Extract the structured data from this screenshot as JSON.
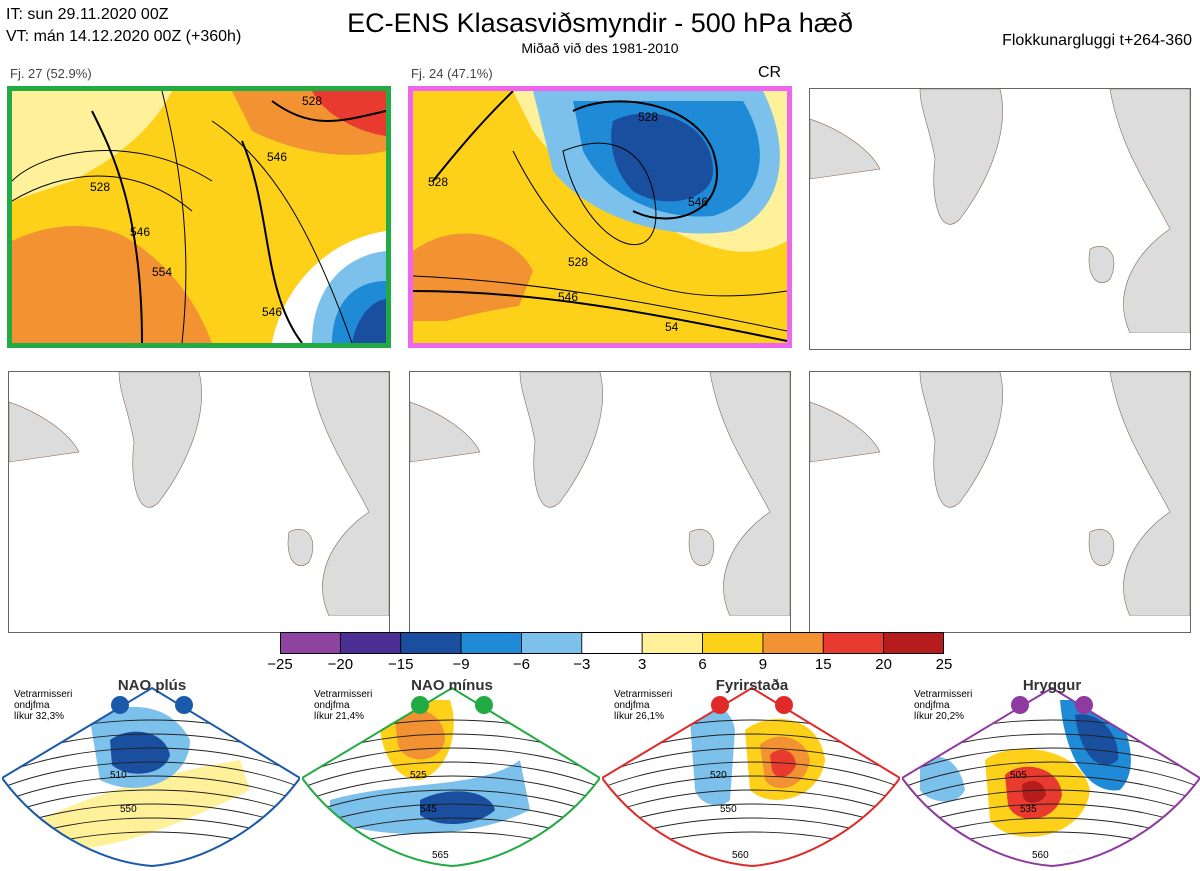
{
  "header": {
    "it_line": "IT: sun 29.11.2020 00Z",
    "vt_line": "VT: mán 14.12.2020 00Z  (+360h)",
    "title": "EC-ENS Klasasviðsmyndir - 500 hPa hæð",
    "subtitle": "Miðað við des 1981-2010",
    "window": "Flokkunarglugg​i t+264-360"
  },
  "panels": [
    {
      "label": "Fj. 27 (52.9%)",
      "frame": "#22aa44",
      "contours": [
        "528",
        "546",
        "546",
        "554",
        "546",
        "528"
      ]
    },
    {
      "label": "Fj. 24 (47.1%)",
      "frame": "#ee66ee",
      "tag": "CR",
      "contours": [
        "528",
        "528",
        "546",
        "528",
        "546",
        "54"
      ]
    },
    {
      "label": "",
      "frame": ""
    },
    {
      "label": "",
      "frame": ""
    },
    {
      "label": "",
      "frame": ""
    },
    {
      "label": "",
      "frame": ""
    }
  ],
  "colorbar": {
    "ticks": [
      "−25",
      "−20",
      "−15",
      "−9",
      "−6",
      "−3",
      "3",
      "6",
      "9",
      "15",
      "20",
      "25"
    ],
    "colors": [
      "#8e44a0",
      "#4b2f95",
      "#1a4fa0",
      "#1f8ad6",
      "#7cc0ec",
      "#ffffff",
      "#fff09a",
      "#fdd11a",
      "#f39232",
      "#e83a2e",
      "#b71c1c"
    ]
  },
  "regimes": [
    {
      "title": "NAO plús",
      "info": [
        "Vetrarmisseri",
        "ondjfma",
        "líkur 32,3%"
      ],
      "color": "#1a5aa8",
      "contours": [
        "510",
        "550"
      ]
    },
    {
      "title": "NAO mínus",
      "info": [
        "Vetrarmisseri",
        "ondjfma",
        "líkur 21,4%"
      ],
      "color": "#22aa44",
      "contours": [
        "525",
        "545",
        "565"
      ]
    },
    {
      "title": "Fyrirstaða",
      "info": [
        "Vetrarmisseri",
        "ondjfma",
        "líkur 26,1%"
      ],
      "color": "#e02a2a",
      "contours": [
        "520",
        "550",
        "560"
      ]
    },
    {
      "title": "Hryggur",
      "info": [
        "Vetrarmisseri",
        "ondjfma",
        "líkur 20,2%"
      ],
      "color": "#8e3aa0",
      "contours": [
        "505",
        "535",
        "560"
      ]
    }
  ],
  "colors": {
    "land": "#dcdcdc",
    "coast": "#8a6a50",
    "green": "#22aa44",
    "pink": "#ee66ee"
  }
}
